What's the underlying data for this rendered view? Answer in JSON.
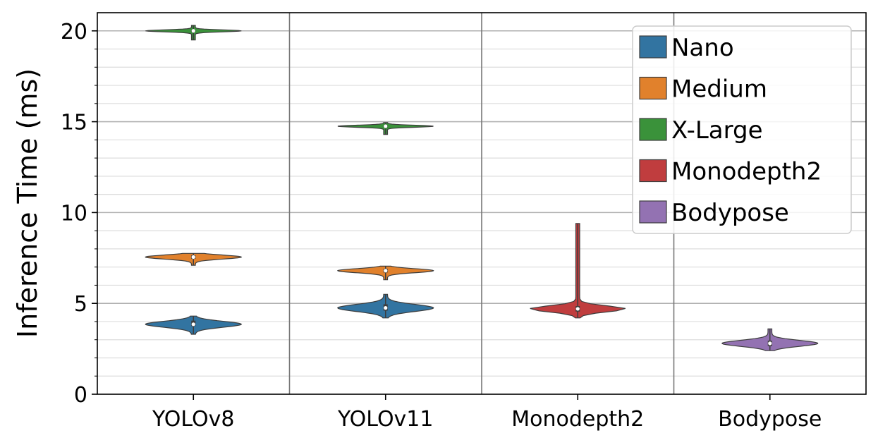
{
  "chart_data": {
    "type": "violin",
    "title": "",
    "xlabel": "",
    "ylabel": "Inference Time (ms)",
    "ylim": [
      0,
      21
    ],
    "yticks": [
      0,
      5,
      10,
      15,
      20
    ],
    "ytick_labels": [
      "0",
      "5",
      "10",
      "15",
      "20"
    ],
    "categories": [
      "YOLOv8",
      "YOLOv11",
      "Monodepth2",
      "Bodypose"
    ],
    "grid": true,
    "legend_position": "top-right",
    "series": [
      {
        "name": "Nano",
        "color": "#3274a1",
        "distributions": [
          {
            "category": "YOLOv8",
            "min": 3.3,
            "q1": 3.75,
            "median": 3.85,
            "q3": 4.05,
            "max": 4.3
          },
          {
            "category": "YOLOv11",
            "min": 4.2,
            "q1": 4.6,
            "median": 4.75,
            "q3": 4.95,
            "max": 5.5
          }
        ]
      },
      {
        "name": "Medium",
        "color": "#e1812c",
        "distributions": [
          {
            "category": "YOLOv8",
            "min": 7.1,
            "q1": 7.45,
            "median": 7.55,
            "q3": 7.65,
            "max": 7.75
          },
          {
            "category": "YOLOv11",
            "min": 6.3,
            "q1": 6.7,
            "median": 6.8,
            "q3": 6.9,
            "max": 7.05
          }
        ]
      },
      {
        "name": "X-Large",
        "color": "#3a923a",
        "distributions": [
          {
            "category": "YOLOv8",
            "min": 19.5,
            "q1": 19.95,
            "median": 20.0,
            "q3": 20.05,
            "max": 20.3
          },
          {
            "category": "YOLOv11",
            "min": 14.3,
            "q1": 14.7,
            "median": 14.75,
            "q3": 14.8,
            "max": 14.95
          }
        ]
      },
      {
        "name": "Monodepth2",
        "color": "#c03d3e",
        "distributions": [
          {
            "category": "Monodepth2",
            "min": 4.2,
            "q1": 4.55,
            "median": 4.7,
            "q3": 4.85,
            "max": 9.4
          }
        ]
      },
      {
        "name": "Bodypose",
        "color": "#9372b2",
        "distributions": [
          {
            "category": "Bodypose",
            "min": 2.4,
            "q1": 2.65,
            "median": 2.8,
            "q3": 2.95,
            "max": 3.6
          }
        ]
      }
    ]
  }
}
